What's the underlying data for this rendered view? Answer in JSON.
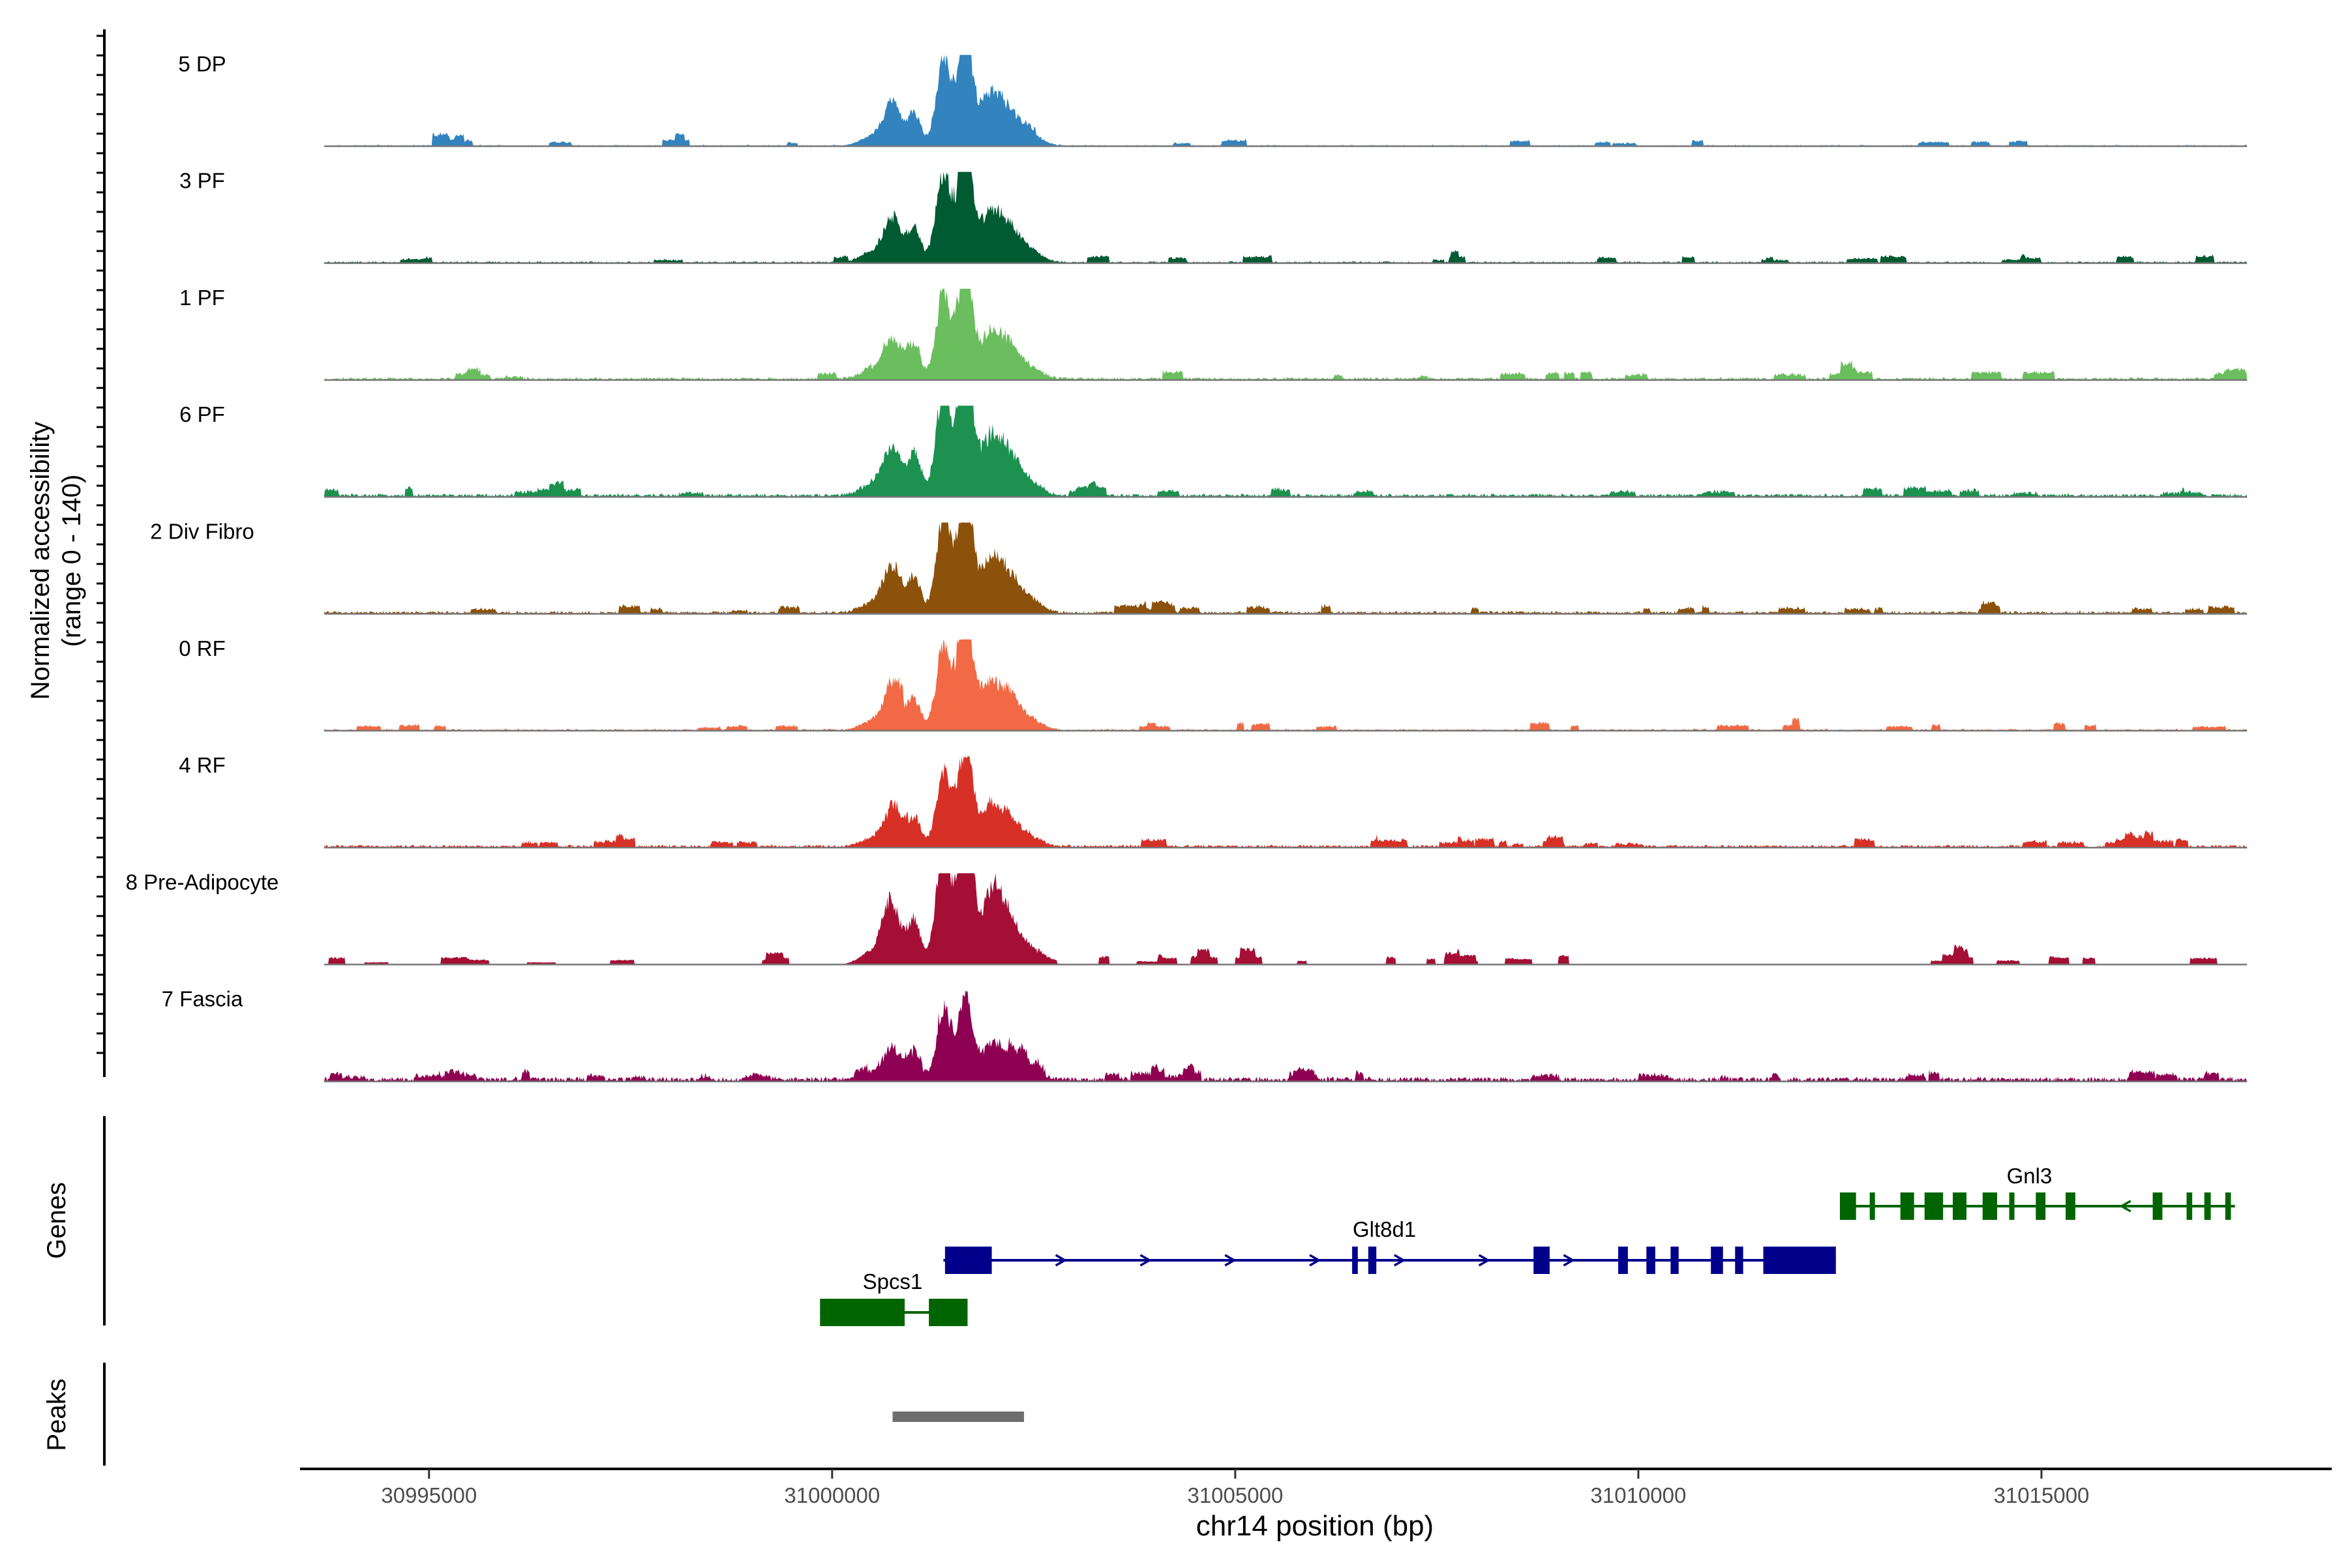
{
  "chart_data": {
    "type": "area",
    "title": "",
    "ylabel_line1": "Normalized accessibility",
    "ylabel_line2": "(range 0 - 140)",
    "y_range": [
      0,
      140
    ],
    "xlabel": "chr14 position (bp)",
    "xlim": [
      30993400,
      31018600
    ],
    "x_ticks": [
      30995000,
      31000000,
      31005000,
      31010000,
      31015000
    ],
    "x_tick_labels": [
      "30995000",
      "31000000",
      "31005000",
      "31010000",
      "31015000"
    ],
    "region": [
      30993700,
      31017550
    ],
    "tracks": [
      {
        "name": "5 DP",
        "color": "#3283BE",
        "noise": 0.015,
        "bursts": 0.45,
        "scale": 1.0
      },
      {
        "name": "3 PF",
        "color": "#005A32",
        "noise": 0.02,
        "bursts": 0.5,
        "scale": 1.05
      },
      {
        "name": "1 PF",
        "color": "#6ABE5E",
        "noise": 0.03,
        "bursts": 0.55,
        "scale": 0.98
      },
      {
        "name": "6 PF",
        "color": "#1C9150",
        "noise": 0.035,
        "bursts": 0.6,
        "scale": 1.2
      },
      {
        "name": "2 Div Fibro",
        "color": "#8C510A",
        "noise": 0.03,
        "bursts": 0.6,
        "scale": 1.1
      },
      {
        "name": "0 RF",
        "color": "#F16A45",
        "noise": 0.02,
        "bursts": 0.65,
        "scale": 0.95
      },
      {
        "name": "4 RF",
        "color": "#D73027",
        "noise": 0.03,
        "bursts": 0.7,
        "scale": 0.85
      },
      {
        "name": "8 Pre-Adipocyte",
        "color": "#A50F35",
        "noise": 0.0,
        "bursts": 0.9,
        "scale": 1.35
      },
      {
        "name": "7 Fascia",
        "color": "#8E0152",
        "noise": 0.05,
        "bursts": 0.85,
        "scale": 0.72
      }
    ],
    "peak_profile": [
      {
        "pos": 31000750,
        "width": 110,
        "height": 0.45
      },
      {
        "pos": 31001020,
        "width": 80,
        "height": 0.35
      },
      {
        "pos": 31001380,
        "width": 90,
        "height": 0.95
      },
      {
        "pos": 31001600,
        "width": 80,
        "height": 0.6
      },
      {
        "pos": 31001680,
        "width": 70,
        "height": 0.85
      },
      {
        "pos": 31001950,
        "width": 140,
        "height": 0.5
      },
      {
        "pos": 31002200,
        "width": 130,
        "height": 0.3
      },
      {
        "pos": 31002450,
        "width": 150,
        "height": 0.12
      },
      {
        "pos": 31000500,
        "width": 150,
        "height": 0.1
      }
    ],
    "genes": [
      {
        "name": "Spcs1",
        "color": "#006400",
        "strand": "-",
        "start": 30999850,
        "end": 31001680,
        "exons": [
          [
            30999850,
            31000900
          ],
          [
            31001200,
            31001680
          ]
        ],
        "label_pos": 31000750
      },
      {
        "name": "Glt8d1",
        "color": "#00008B",
        "strand": "+",
        "start": 31001380,
        "end": 31012450,
        "exons": [
          [
            31001400,
            31001980
          ],
          [
            31006450,
            31006520
          ],
          [
            31006650,
            31006750
          ],
          [
            31008700,
            31008900
          ],
          [
            31009750,
            31009870
          ],
          [
            31010100,
            31010210
          ],
          [
            31010400,
            31010500
          ],
          [
            31010900,
            31011050
          ],
          [
            31011200,
            31011300
          ],
          [
            31011550,
            31012450
          ]
        ],
        "label_pos": 31006850
      },
      {
        "name": "Gnl3",
        "color": "#006400",
        "strand": "-",
        "start": 31012500,
        "end": 31017400,
        "exons": [
          [
            31012500,
            31012700
          ],
          [
            31012870,
            31012920
          ],
          [
            31013250,
            31013420
          ],
          [
            31013550,
            31013780
          ],
          [
            31013900,
            31014070
          ],
          [
            31014270,
            31014450
          ],
          [
            31014600,
            31014640
          ],
          [
            31014930,
            31015050
          ],
          [
            31015300,
            31015420
          ],
          [
            31016380,
            31016500
          ],
          [
            31016800,
            31016870
          ],
          [
            31017020,
            31017100
          ],
          [
            31017280,
            31017350
          ]
        ],
        "label_pos": 31014850
      }
    ],
    "peaks": [
      {
        "start": 31000750,
        "end": 31002380
      }
    ],
    "panel_labels": {
      "genes": "Genes",
      "peaks": "Peaks"
    }
  }
}
